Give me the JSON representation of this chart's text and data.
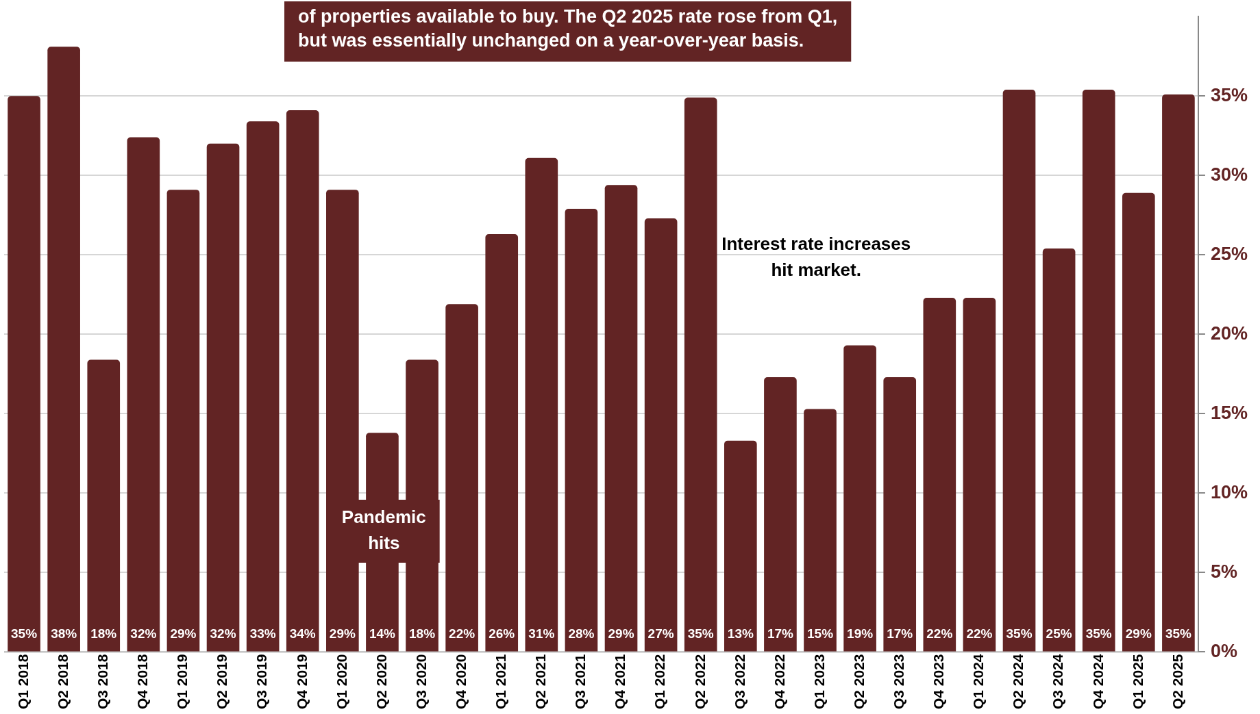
{
  "chart_data": {
    "type": "bar",
    "categories": [
      "Q1 2018",
      "Q2 2018",
      "Q3 2018",
      "Q4 2018",
      "Q1 2019",
      "Q2 2019",
      "Q3 2019",
      "Q4 2019",
      "Q1 2020",
      "Q2 2020",
      "Q3 2020",
      "Q4 2020",
      "Q1 2021",
      "Q2 2021",
      "Q3 2021",
      "Q4 2021",
      "Q1 2022",
      "Q2 2022",
      "Q3 2022",
      "Q4 2022",
      "Q1 2023",
      "Q2 2023",
      "Q3 2023",
      "Q4 2023",
      "Q1 2024",
      "Q2 2024",
      "Q3 2024",
      "Q4 2024",
      "Q1 2025",
      "Q2 2025"
    ],
    "values": [
      35.0,
      38.1,
      18.4,
      32.4,
      29.1,
      32.0,
      33.4,
      34.1,
      29.1,
      13.8,
      18.4,
      21.9,
      26.3,
      31.1,
      27.9,
      29.4,
      27.3,
      34.9,
      13.3,
      17.3,
      15.3,
      19.3,
      17.3,
      22.3,
      22.3,
      35.4,
      25.4,
      35.4,
      28.9,
      35.1
    ],
    "value_labels": [
      "35%",
      "38%",
      "18%",
      "32%",
      "29%",
      "32%",
      "33%",
      "34%",
      "29%",
      "14%",
      "18%",
      "22%",
      "26%",
      "31%",
      "28%",
      "29%",
      "27%",
      "35%",
      "13%",
      "17%",
      "15%",
      "19%",
      "17%",
      "22%",
      "22%",
      "35%",
      "25%",
      "35%",
      "29%",
      "35%"
    ],
    "color": "#622424",
    "ylim": [
      0,
      40
    ],
    "yticks": [
      {
        "value": 0,
        "label": "0%"
      },
      {
        "value": 5,
        "label": "5%"
      },
      {
        "value": 10,
        "label": "10%"
      },
      {
        "value": 15,
        "label": "15%"
      },
      {
        "value": 20,
        "label": "20%"
      },
      {
        "value": 25,
        "label": "25%"
      },
      {
        "value": 30,
        "label": "30%"
      },
      {
        "value": 35,
        "label": "35%"
      }
    ],
    "grid": "y",
    "legend": false,
    "annotations": [
      "of properties available to buy. The Q2 2025 rate rose from Q1,\nbut was essentially unchanged on a year-over-year basis.",
      "Pandemic\nhits",
      "Interest rate increases\nhit market."
    ]
  }
}
